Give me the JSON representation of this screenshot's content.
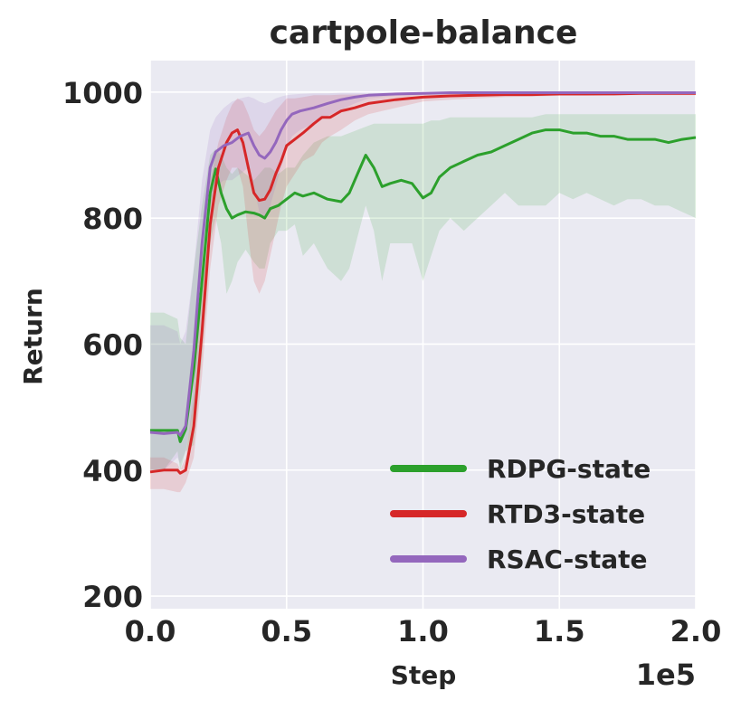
{
  "chart_data": {
    "type": "line",
    "title": "cartpole-balance",
    "xlabel": "Step",
    "ylabel": "Return",
    "x_offset_text": "1e5",
    "xlim": [
      0,
      2.0
    ],
    "ylim": [
      180,
      1050
    ],
    "x_ticks": [
      0.0,
      0.5,
      1.0,
      1.5,
      2.0
    ],
    "x_tick_labels": [
      "0.0",
      "0.5",
      "1.0",
      "1.5",
      "2.0"
    ],
    "y_ticks": [
      200,
      400,
      600,
      800,
      1000
    ],
    "y_tick_labels": [
      "200",
      "400",
      "600",
      "800",
      "1000"
    ],
    "grid": true,
    "background": "#eaeaf2",
    "legend_position": "lower-right",
    "series": [
      {
        "name": "RDPG-state",
        "color": "#2ca02c",
        "x": [
          0.0,
          0.05,
          0.1,
          0.11,
          0.13,
          0.16,
          0.19,
          0.22,
          0.24,
          0.26,
          0.28,
          0.3,
          0.32,
          0.35,
          0.38,
          0.4,
          0.42,
          0.44,
          0.47,
          0.5,
          0.53,
          0.56,
          0.6,
          0.65,
          0.7,
          0.73,
          0.76,
          0.79,
          0.82,
          0.85,
          0.88,
          0.92,
          0.96,
          1.0,
          1.03,
          1.06,
          1.1,
          1.15,
          1.2,
          1.25,
          1.3,
          1.35,
          1.4,
          1.45,
          1.5,
          1.55,
          1.6,
          1.65,
          1.7,
          1.75,
          1.8,
          1.85,
          1.9,
          1.95,
          2.0
        ],
        "y": [
          463,
          463,
          463,
          445,
          465,
          560,
          700,
          840,
          878,
          840,
          815,
          800,
          805,
          810,
          808,
          805,
          800,
          815,
          820,
          830,
          840,
          835,
          840,
          830,
          826,
          840,
          870,
          900,
          880,
          850,
          855,
          860,
          855,
          832,
          840,
          865,
          880,
          890,
          900,
          905,
          915,
          925,
          935,
          940,
          940,
          935,
          935,
          930,
          930,
          925,
          925,
          925,
          920,
          925,
          928
        ],
        "upper": [
          650,
          650,
          640,
          610,
          600,
          720,
          820,
          900,
          910,
          900,
          880,
          870,
          880,
          870,
          860,
          870,
          880,
          880,
          870,
          880,
          880,
          900,
          920,
          930,
          930,
          935,
          940,
          945,
          950,
          950,
          950,
          950,
          950,
          950,
          955,
          955,
          960,
          960,
          960,
          960,
          960,
          960,
          960,
          965,
          965,
          965,
          965,
          965,
          965,
          965,
          965,
          965,
          965,
          965,
          965
        ],
        "lower": [
          400,
          400,
          430,
          400,
          430,
          440,
          580,
          760,
          800,
          760,
          680,
          700,
          730,
          750,
          730,
          720,
          720,
          760,
          780,
          780,
          790,
          740,
          760,
          720,
          700,
          720,
          770,
          820,
          780,
          700,
          760,
          760,
          760,
          700,
          740,
          780,
          800,
          780,
          800,
          820,
          840,
          820,
          820,
          820,
          840,
          830,
          840,
          830,
          820,
          830,
          830,
          820,
          820,
          810,
          800
        ]
      },
      {
        "name": "RTD3-state",
        "color": "#d62728",
        "x": [
          0.0,
          0.05,
          0.1,
          0.11,
          0.13,
          0.16,
          0.19,
          0.22,
          0.25,
          0.28,
          0.3,
          0.32,
          0.34,
          0.36,
          0.38,
          0.4,
          0.42,
          0.44,
          0.46,
          0.48,
          0.5,
          0.53,
          0.56,
          0.6,
          0.63,
          0.66,
          0.7,
          0.75,
          0.8,
          0.85,
          0.9,
          0.95,
          1.0,
          1.1,
          1.2,
          1.3,
          1.4,
          1.5,
          1.6,
          1.7,
          1.8,
          1.9,
          2.0
        ],
        "y": [
          397,
          400,
          400,
          395,
          400,
          470,
          620,
          790,
          880,
          920,
          935,
          940,
          920,
          880,
          840,
          828,
          830,
          845,
          870,
          890,
          915,
          925,
          935,
          950,
          960,
          960,
          970,
          975,
          982,
          985,
          988,
          990,
          992,
          994,
          995,
          996,
          996,
          997,
          997,
          997,
          998,
          998,
          998
        ],
        "upper": [
          420,
          420,
          410,
          400,
          420,
          520,
          700,
          860,
          920,
          960,
          980,
          990,
          985,
          965,
          940,
          930,
          940,
          955,
          970,
          980,
          990,
          990,
          992,
          995,
          995,
          995,
          996,
          996,
          997,
          997,
          998,
          998,
          998,
          999,
          999,
          999,
          999,
          999,
          999,
          999,
          999,
          999,
          999
        ],
        "lower": [
          370,
          370,
          365,
          365,
          380,
          420,
          550,
          720,
          820,
          860,
          880,
          880,
          850,
          770,
          700,
          680,
          700,
          740,
          780,
          820,
          850,
          870,
          890,
          900,
          920,
          930,
          940,
          955,
          965,
          970,
          975,
          980,
          985,
          988,
          990,
          992,
          993,
          994,
          994,
          995,
          995,
          995,
          995
        ]
      },
      {
        "name": "RSAC-state",
        "color": "#9467bd",
        "x": [
          0.0,
          0.05,
          0.1,
          0.11,
          0.13,
          0.16,
          0.19,
          0.22,
          0.24,
          0.27,
          0.3,
          0.33,
          0.36,
          0.38,
          0.4,
          0.42,
          0.44,
          0.46,
          0.48,
          0.5,
          0.52,
          0.55,
          0.6,
          0.65,
          0.7,
          0.75,
          0.8,
          0.9,
          1.0,
          1.1,
          1.2,
          1.3,
          1.4,
          1.5,
          1.6,
          1.7,
          1.8,
          1.9,
          2.0
        ],
        "y": [
          460,
          458,
          460,
          455,
          470,
          590,
          760,
          880,
          905,
          915,
          920,
          930,
          935,
          915,
          900,
          895,
          905,
          920,
          940,
          955,
          965,
          970,
          975,
          982,
          988,
          992,
          995,
          997,
          998,
          999,
          999,
          999,
          999,
          999,
          999,
          999,
          999,
          999,
          999
        ],
        "upper": [
          630,
          630,
          620,
          600,
          620,
          720,
          860,
          940,
          960,
          975,
          985,
          990,
          993,
          990,
          985,
          982,
          985,
          990,
          993,
          995,
          996,
          997,
          998,
          998,
          999,
          999,
          999,
          999,
          999,
          999,
          999,
          999,
          999,
          999,
          999,
          999,
          999,
          999,
          999
        ],
        "lower": [
          400,
          400,
          420,
          410,
          430,
          500,
          680,
          820,
          850,
          860,
          860,
          870,
          880,
          850,
          810,
          800,
          820,
          850,
          880,
          910,
          930,
          940,
          950,
          962,
          972,
          982,
          990,
          994,
          996,
          997,
          997,
          997,
          998,
          998,
          998,
          998,
          998,
          998,
          998
        ]
      }
    ]
  }
}
